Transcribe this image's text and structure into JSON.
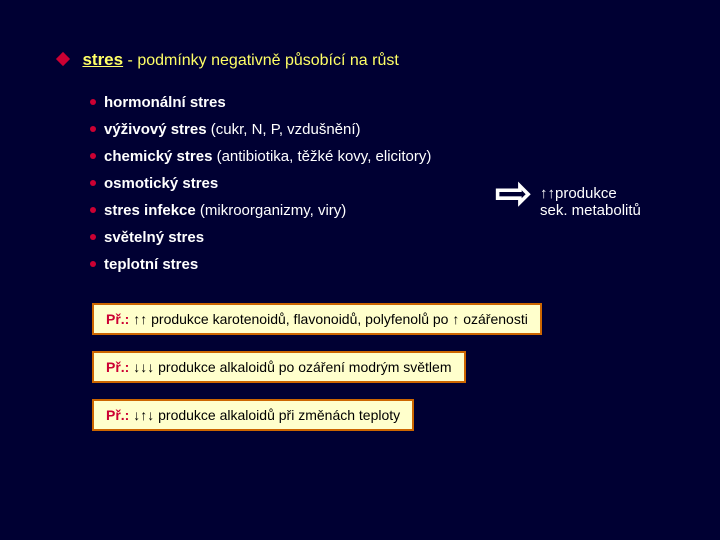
{
  "colors": {
    "background": "#000033",
    "accent_red": "#cc0033",
    "yellow_text": "#ffff66",
    "box_bg": "#ffffcc",
    "box_border": "#cc6600"
  },
  "header": {
    "strong": "stres",
    "rest": " - podmínky negativně působící na růst"
  },
  "bullets": [
    {
      "bold": "hormonální stres",
      "rest": ""
    },
    {
      "bold": "výživový stres",
      "rest": " (cukr, N, P, vzdušnění)"
    },
    {
      "bold": "chemický stres",
      "rest": " (antibiotika, těžké kovy, elicitory)"
    },
    {
      "bold": "osmotický stres",
      "rest": ""
    },
    {
      "bold": "stres infekce",
      "rest": " (mikroorganizmy, viry)"
    },
    {
      "bold": "světelný stres",
      "rest": ""
    },
    {
      "bold": "teplotní stres",
      "rest": ""
    }
  ],
  "right": {
    "big_arrow": "⇨",
    "up": "↑↑",
    "line1": "produkce",
    "line2": "sek. metabolitů"
  },
  "examples": [
    {
      "pr": "Př.:",
      "arr": " ↑↑ ",
      "text1": "produkce karotenoidů, flavonoidů, polyfenolů po ",
      "arr2": "↑",
      "text2": " ozářenosti"
    },
    {
      "pr": "Př.:",
      "arr": " ↓↓↓ ",
      "text1": "produkce alkaloidů po ozáření modrým světlem",
      "arr2": "",
      "text2": ""
    },
    {
      "pr": "Př.:",
      "arr": " ↓↑↓ ",
      "text1": "produkce alkaloidů  při změnách teploty",
      "arr2": "",
      "text2": ""
    }
  ]
}
